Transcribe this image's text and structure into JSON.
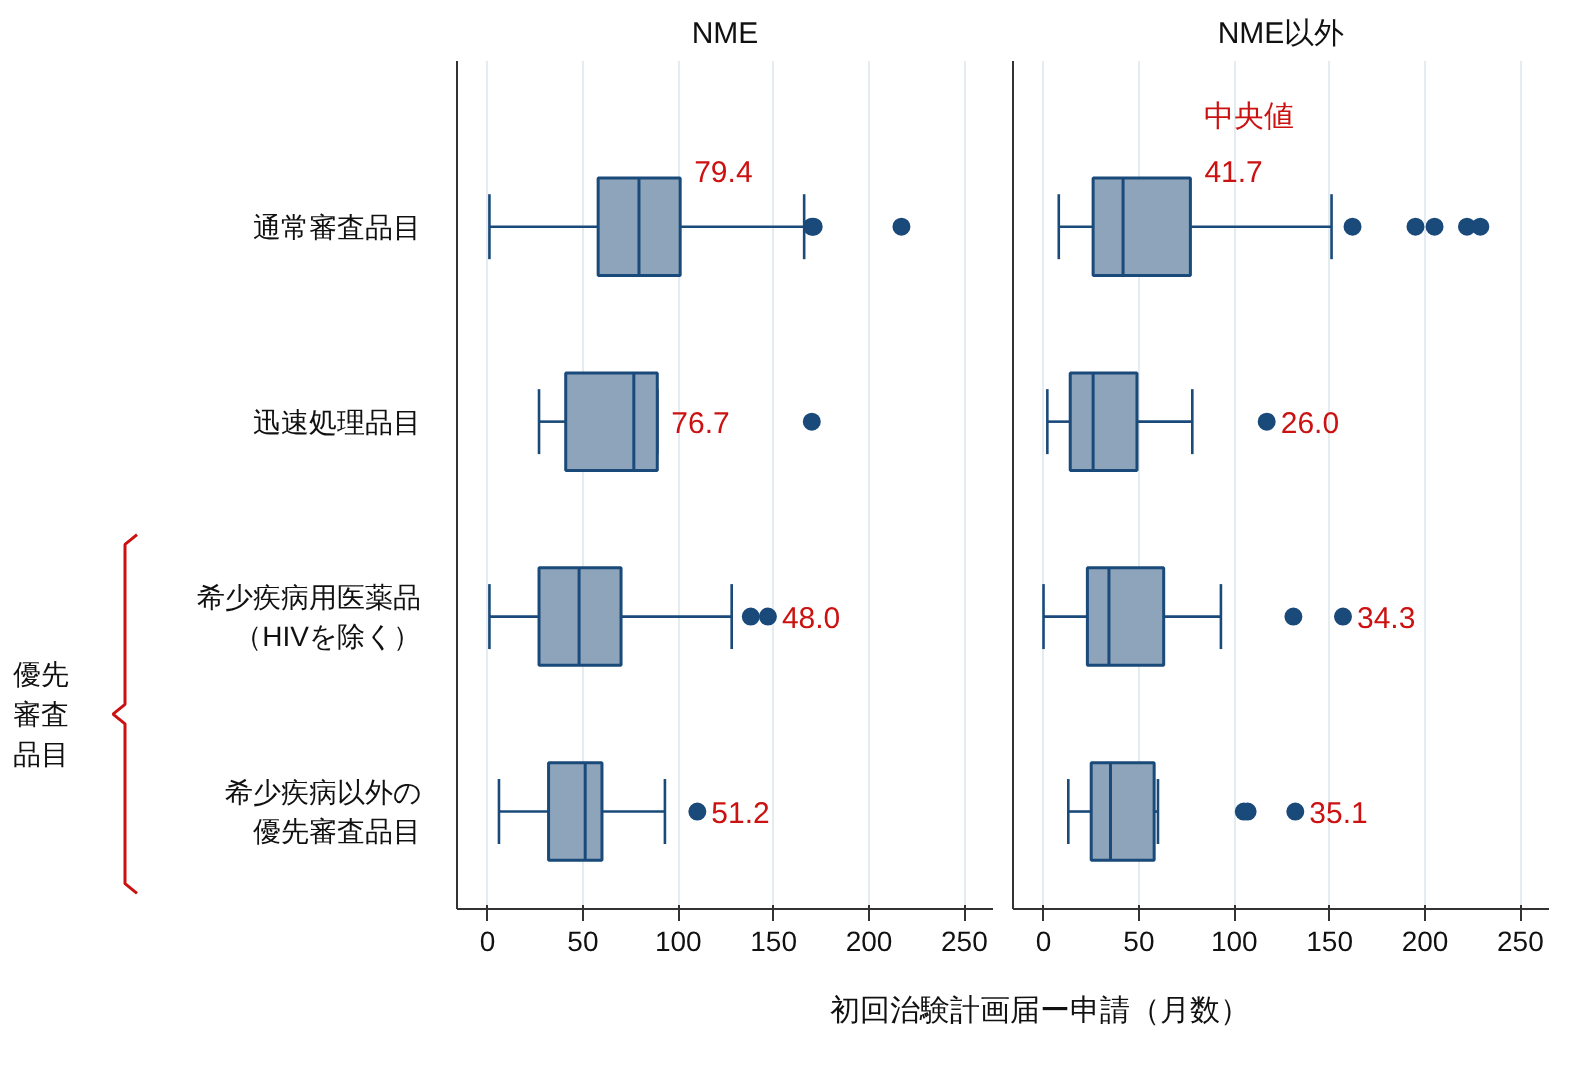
{
  "chart_data": [
    {
      "type": "box",
      "orientation": "horizontal",
      "title": "NME",
      "xlabel": "初回治験計画届ー申請（月数）",
      "categories": [
        "通常審査品目",
        "迅速処理品目",
        "希少疾病用医薬品（HIVを除く）",
        "希少疾病以外の優先審査品目"
      ],
      "boxes": [
        {
          "low": 1,
          "q1": 58,
          "median": 79.4,
          "q3": 101,
          "high": 166,
          "outliers": [
            170,
            171,
            217
          ]
        },
        {
          "low": 27,
          "q1": 41,
          "median": 76.7,
          "q3": 89,
          "high": 89,
          "outliers": [
            170
          ]
        },
        {
          "low": 1,
          "q1": 27,
          "median": 48.0,
          "q3": 70,
          "high": 128,
          "outliers": [
            138,
            147
          ]
        },
        {
          "low": 6,
          "q1": 32,
          "median": 51.2,
          "q3": 60,
          "high": 93,
          "outliers": [
            110
          ]
        }
      ],
      "value_labels": [
        "79.4",
        "76.7",
        "48.0",
        "51.2"
      ],
      "color": "#8ea4bb",
      "xlim": [
        -16,
        265
      ],
      "xticks": [
        0,
        50,
        100,
        150,
        200,
        250
      ],
      "grid": "x",
      "annotations": [
        "優先審査品目"
      ]
    },
    {
      "type": "box",
      "orientation": "horizontal",
      "title": "NME以外",
      "categories": [
        "通常審査品目",
        "迅速処理品目",
        "希少疾病用医薬品（HIVを除く）",
        "希少疾病以外の優先審査品目"
      ],
      "boxes": [
        {
          "low": 8,
          "q1": 26,
          "median": 41.7,
          "q3": 77,
          "high": 151,
          "outliers": [
            162,
            195,
            205,
            222,
            229
          ]
        },
        {
          "low": 2,
          "q1": 14,
          "median": 26.0,
          "q3": 49,
          "high": 78,
          "outliers": [
            117
          ]
        },
        {
          "low": 0,
          "q1": 23,
          "median": 34.3,
          "q3": 63,
          "high": 93,
          "outliers": [
            131,
            157
          ]
        },
        {
          "low": 13,
          "q1": 25,
          "median": 35.1,
          "q3": 58,
          "high": 60,
          "outliers": [
            105,
            107,
            132
          ]
        }
      ],
      "value_labels": [
        "41.7",
        "26.0",
        "34.3",
        "35.1"
      ],
      "color": "#8ea4bb",
      "xlim": [
        -16,
        265
      ],
      "xticks": [
        0,
        50,
        100,
        150,
        200,
        250
      ],
      "grid": "x",
      "tick_labels": "x",
      "annotations": [
        "中央値"
      ]
    }
  ]
}
